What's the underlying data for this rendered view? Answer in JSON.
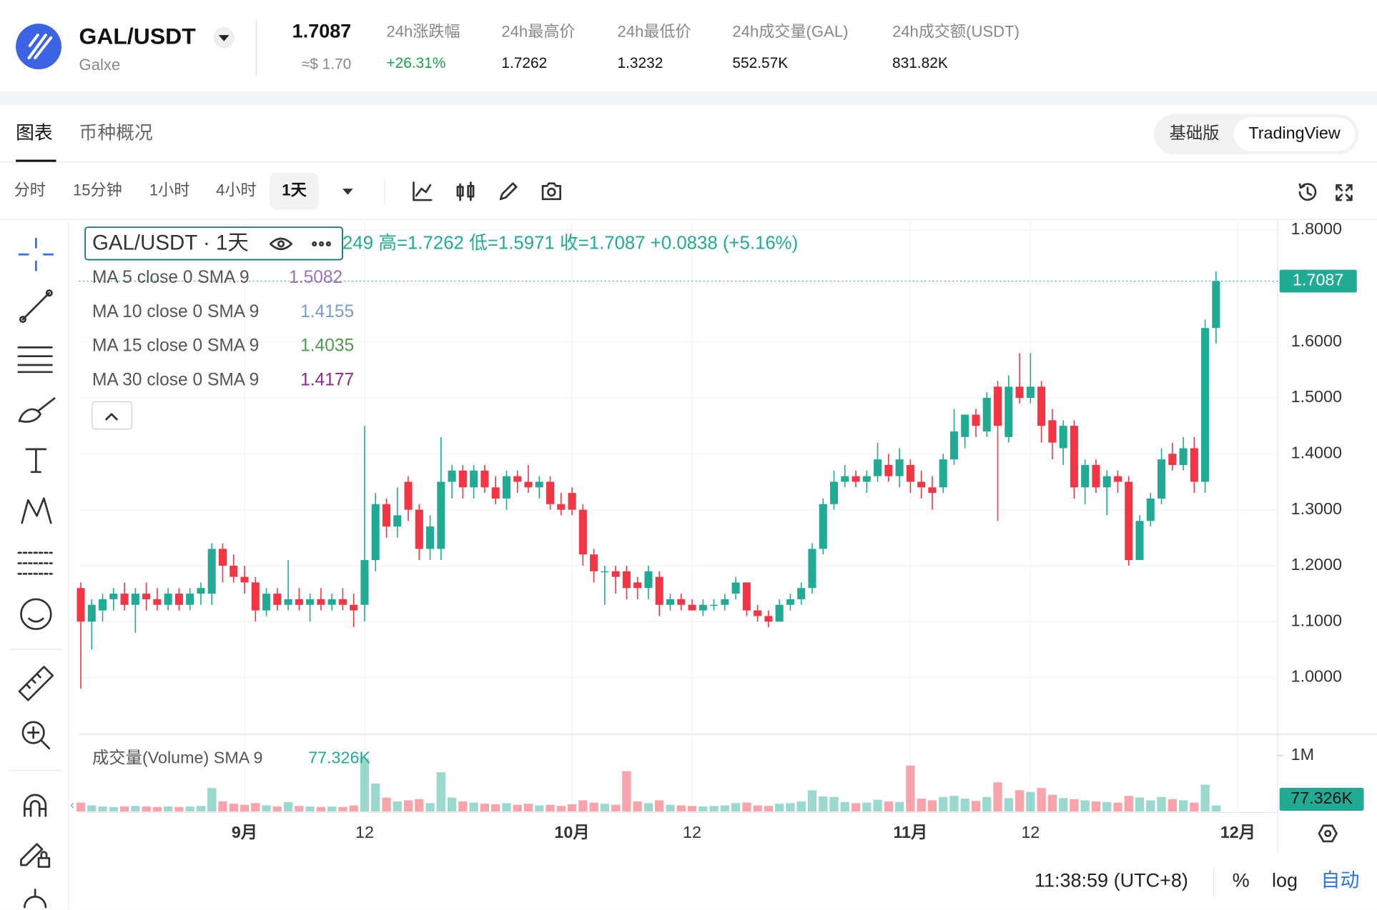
{
  "header": {
    "pair": "GAL/USDT",
    "name": "Galxe",
    "price": "1.7087",
    "price_usd": "≈$ 1.70",
    "stats": [
      {
        "label": "24h涨跌幅",
        "value": "+26.31%"
      },
      {
        "label": "24h最高价",
        "value": "1.7262"
      },
      {
        "label": "24h最低价",
        "value": "1.3232"
      },
      {
        "label": "24h成交量(GAL)",
        "value": "552.57K"
      },
      {
        "label": "24h成交额(USDT)",
        "value": "831.82K"
      }
    ]
  },
  "tabs": [
    "图表",
    "币种概况"
  ],
  "modes": [
    "基础版",
    "TradingView"
  ],
  "intervals": [
    "分时",
    "15分钟",
    "1小时",
    "4小时",
    "1天"
  ],
  "footer": {
    "time": "11:38:59 (UTC+8)",
    "percent": "%",
    "log": "log",
    "auto": "自动"
  },
  "chart_data": {
    "type": "candlestick",
    "symbol_label": "GAL/USDT · 1天",
    "ohlc_legend": "249  高=1.7262  低=1.5971  收=1.7087  +0.0838 (+5.16%)",
    "ma_legend": [
      {
        "name": "MA 5 close 0 SMA 9",
        "value": 1.5082,
        "color": "#9a6fc4"
      },
      {
        "name": "MA 10 close 0 SMA 9",
        "value": 1.4155,
        "color": "#7a9cc8"
      },
      {
        "name": "MA 15 close 0 SMA 9",
        "value": 1.4035,
        "color": "#4f9a4f"
      },
      {
        "name": "MA 30 close 0 SMA 9",
        "value": 1.4177,
        "color": "#8e2a86"
      }
    ],
    "volume_legend": "成交量(Volume) SMA 9",
    "volume_sma": {
      "value": 77326,
      "label": "77.326K"
    },
    "last_price": 1.7087,
    "colors": {
      "up": "#22ab94",
      "down": "#f23645"
    },
    "grid": true,
    "ylim": [
      0.9,
      1.816
    ],
    "yticks": [
      {
        "value": 1.0,
        "label": "1.0000"
      },
      {
        "value": 1.1,
        "label": "1.1000"
      },
      {
        "value": 1.2,
        "label": "1.2000"
      },
      {
        "value": 1.3,
        "label": "1.3000"
      },
      {
        "value": 1.4,
        "label": "1.4000"
      },
      {
        "value": 1.5,
        "label": "1.5000"
      },
      {
        "value": 1.6,
        "label": "1.6000"
      },
      {
        "value": 1.8,
        "label": "1.8000"
      }
    ],
    "vol_ylim": [
      0,
      1360000
    ],
    "vol_yticks": [
      {
        "value": 1000000,
        "label": "1M"
      }
    ],
    "categories": [
      null,
      null,
      null,
      null,
      null,
      null,
      null,
      null,
      null,
      null,
      null,
      null,
      null,
      null,
      null,
      "9月",
      null,
      null,
      null,
      null,
      null,
      null,
      null,
      null,
      null,
      null,
      "12",
      null,
      null,
      null,
      null,
      null,
      null,
      null,
      null,
      null,
      null,
      null,
      null,
      null,
      null,
      null,
      null,
      null,
      null,
      "10月",
      null,
      null,
      null,
      null,
      null,
      null,
      null,
      null,
      null,
      null,
      "12",
      null,
      null,
      null,
      null,
      null,
      null,
      null,
      null,
      null,
      null,
      null,
      null,
      null,
      null,
      null,
      null,
      null,
      null,
      null,
      "11月",
      null,
      null,
      null,
      null,
      null,
      null,
      null,
      null,
      null,
      null,
      "12",
      null,
      null,
      null,
      null,
      null,
      null,
      null,
      null,
      null,
      null,
      null,
      null,
      null,
      null,
      null,
      null,
      null,
      null,
      "12月"
    ],
    "candles": [
      [
        1.16,
        1.17,
        0.98,
        1.1
      ],
      [
        1.1,
        1.14,
        1.05,
        1.13
      ],
      [
        1.12,
        1.15,
        1.1,
        1.14
      ],
      [
        1.14,
        1.16,
        1.12,
        1.15
      ],
      [
        1.15,
        1.17,
        1.12,
        1.13
      ],
      [
        1.13,
        1.16,
        1.08,
        1.15
      ],
      [
        1.15,
        1.17,
        1.12,
        1.14
      ],
      [
        1.14,
        1.16,
        1.12,
        1.13
      ],
      [
        1.13,
        1.16,
        1.12,
        1.15
      ],
      [
        1.15,
        1.16,
        1.12,
        1.13
      ],
      [
        1.13,
        1.16,
        1.12,
        1.15
      ],
      [
        1.15,
        1.17,
        1.13,
        1.16
      ],
      [
        1.15,
        1.24,
        1.13,
        1.23
      ],
      [
        1.23,
        1.24,
        1.17,
        1.2
      ],
      [
        1.2,
        1.22,
        1.17,
        1.18
      ],
      [
        1.18,
        1.2,
        1.15,
        1.17
      ],
      [
        1.17,
        1.18,
        1.1,
        1.12
      ],
      [
        1.12,
        1.16,
        1.11,
        1.15
      ],
      [
        1.15,
        1.16,
        1.12,
        1.13
      ],
      [
        1.13,
        1.21,
        1.12,
        1.14
      ],
      [
        1.14,
        1.16,
        1.12,
        1.13
      ],
      [
        1.13,
        1.15,
        1.1,
        1.14
      ],
      [
        1.14,
        1.16,
        1.12,
        1.13
      ],
      [
        1.13,
        1.15,
        1.12,
        1.14
      ],
      [
        1.14,
        1.16,
        1.12,
        1.13
      ],
      [
        1.13,
        1.15,
        1.09,
        1.12
      ],
      [
        1.13,
        1.45,
        1.1,
        1.21
      ],
      [
        1.21,
        1.33,
        1.19,
        1.31
      ],
      [
        1.31,
        1.32,
        1.25,
        1.27
      ],
      [
        1.27,
        1.34,
        1.25,
        1.29
      ],
      [
        1.35,
        1.36,
        1.28,
        1.3
      ],
      [
        1.3,
        1.31,
        1.21,
        1.23
      ],
      [
        1.23,
        1.29,
        1.21,
        1.27
      ],
      [
        1.23,
        1.43,
        1.21,
        1.35
      ],
      [
        1.35,
        1.38,
        1.32,
        1.37
      ],
      [
        1.37,
        1.38,
        1.32,
        1.34
      ],
      [
        1.34,
        1.38,
        1.32,
        1.37
      ],
      [
        1.37,
        1.38,
        1.33,
        1.34
      ],
      [
        1.34,
        1.36,
        1.31,
        1.32
      ],
      [
        1.32,
        1.37,
        1.3,
        1.36
      ],
      [
        1.36,
        1.37,
        1.33,
        1.35
      ],
      [
        1.35,
        1.38,
        1.33,
        1.34
      ],
      [
        1.34,
        1.36,
        1.32,
        1.35
      ],
      [
        1.35,
        1.36,
        1.3,
        1.31
      ],
      [
        1.31,
        1.33,
        1.29,
        1.3
      ],
      [
        1.33,
        1.34,
        1.29,
        1.3
      ],
      [
        1.3,
        1.31,
        1.2,
        1.22
      ],
      [
        1.22,
        1.23,
        1.17,
        1.19
      ],
      [
        1.19,
        1.2,
        1.13,
        1.19
      ],
      [
        1.19,
        1.2,
        1.15,
        1.18
      ],
      [
        1.19,
        1.2,
        1.14,
        1.16
      ],
      [
        1.17,
        1.18,
        1.14,
        1.16
      ],
      [
        1.16,
        1.2,
        1.14,
        1.19
      ],
      [
        1.18,
        1.19,
        1.11,
        1.13
      ],
      [
        1.13,
        1.15,
        1.12,
        1.14
      ],
      [
        1.14,
        1.15,
        1.12,
        1.13
      ],
      [
        1.13,
        1.14,
        1.12,
        1.12
      ],
      [
        1.12,
        1.14,
        1.11,
        1.13
      ],
      [
        1.13,
        1.14,
        1.12,
        1.13
      ],
      [
        1.13,
        1.15,
        1.12,
        1.14
      ],
      [
        1.15,
        1.18,
        1.14,
        1.17
      ],
      [
        1.17,
        1.17,
        1.11,
        1.12
      ],
      [
        1.12,
        1.13,
        1.1,
        1.11
      ],
      [
        1.11,
        1.12,
        1.09,
        1.1
      ],
      [
        1.1,
        1.14,
        1.1,
        1.13
      ],
      [
        1.13,
        1.15,
        1.12,
        1.14
      ],
      [
        1.14,
        1.17,
        1.13,
        1.16
      ],
      [
        1.16,
        1.24,
        1.15,
        1.23
      ],
      [
        1.23,
        1.32,
        1.22,
        1.31
      ],
      [
        1.31,
        1.37,
        1.3,
        1.35
      ],
      [
        1.35,
        1.38,
        1.34,
        1.36
      ],
      [
        1.36,
        1.37,
        1.34,
        1.35
      ],
      [
        1.35,
        1.37,
        1.33,
        1.36
      ],
      [
        1.36,
        1.42,
        1.35,
        1.39
      ],
      [
        1.38,
        1.4,
        1.35,
        1.36
      ],
      [
        1.36,
        1.41,
        1.34,
        1.39
      ],
      [
        1.38,
        1.39,
        1.33,
        1.35
      ],
      [
        1.35,
        1.37,
        1.32,
        1.34
      ],
      [
        1.34,
        1.36,
        1.3,
        1.33
      ],
      [
        1.34,
        1.4,
        1.33,
        1.39
      ],
      [
        1.39,
        1.48,
        1.38,
        1.44
      ],
      [
        1.43,
        1.47,
        1.41,
        1.47
      ],
      [
        1.47,
        1.48,
        1.43,
        1.45
      ],
      [
        1.44,
        1.51,
        1.43,
        1.5
      ],
      [
        1.52,
        1.53,
        1.28,
        1.45
      ],
      [
        1.43,
        1.54,
        1.42,
        1.52
      ],
      [
        1.52,
        1.58,
        1.49,
        1.5
      ],
      [
        1.5,
        1.58,
        1.49,
        1.52
      ],
      [
        1.52,
        1.53,
        1.42,
        1.45
      ],
      [
        1.46,
        1.48,
        1.39,
        1.42
      ],
      [
        1.41,
        1.46,
        1.38,
        1.45
      ],
      [
        1.45,
        1.46,
        1.32,
        1.34
      ],
      [
        1.34,
        1.39,
        1.31,
        1.38
      ],
      [
        1.38,
        1.39,
        1.33,
        1.34
      ],
      [
        1.34,
        1.37,
        1.29,
        1.36
      ],
      [
        1.36,
        1.37,
        1.33,
        1.35
      ],
      [
        1.35,
        1.36,
        1.2,
        1.21
      ],
      [
        1.21,
        1.29,
        1.21,
        1.28
      ],
      [
        1.28,
        1.33,
        1.27,
        1.32
      ],
      [
        1.32,
        1.41,
        1.31,
        1.39
      ],
      [
        1.4,
        1.42,
        1.37,
        1.38
      ],
      [
        1.38,
        1.43,
        1.37,
        1.41
      ],
      [
        1.41,
        1.43,
        1.33,
        1.35
      ],
      [
        1.35,
        1.64,
        1.33,
        1.6249
      ],
      [
        1.6249,
        1.7262,
        1.5971,
        1.7087
      ],
      null,
      null
    ],
    "volumes": [
      160000,
      110000,
      90000,
      80000,
      90000,
      100000,
      90000,
      80000,
      90000,
      80000,
      90000,
      100000,
      420000,
      180000,
      140000,
      120000,
      150000,
      110000,
      90000,
      170000,
      100000,
      90000,
      80000,
      90000,
      80000,
      110000,
      950000,
      500000,
      250000,
      180000,
      200000,
      220000,
      150000,
      700000,
      250000,
      180000,
      160000,
      140000,
      130000,
      150000,
      120000,
      140000,
      110000,
      120000,
      100000,
      130000,
      200000,
      160000,
      140000,
      120000,
      720000,
      180000,
      150000,
      200000,
      120000,
      110000,
      100000,
      90000,
      100000,
      110000,
      150000,
      160000,
      110000,
      100000,
      140000,
      150000,
      180000,
      380000,
      270000,
      260000,
      170000,
      150000,
      160000,
      210000,
      180000,
      170000,
      820000,
      230000,
      200000,
      260000,
      280000,
      230000,
      190000,
      260000,
      520000,
      240000,
      380000,
      350000,
      420000,
      300000,
      240000,
      220000,
      200000,
      180000,
      170000,
      160000,
      280000,
      250000,
      200000,
      260000,
      220000,
      200000,
      160000,
      480000,
      110000,
      null,
      null
    ]
  }
}
